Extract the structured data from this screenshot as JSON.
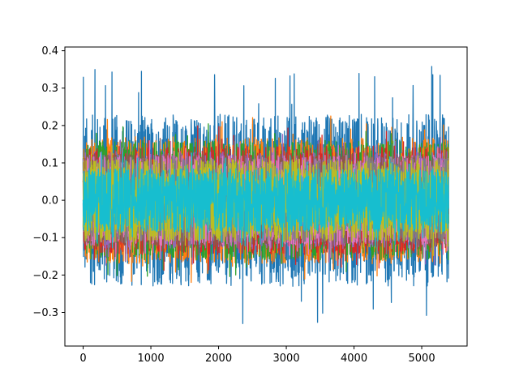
{
  "chart_data": {
    "type": "line",
    "title": "",
    "xlabel": "",
    "ylabel": "",
    "n_points": 5400,
    "xlim": [
      -270,
      5670
    ],
    "ylim": [
      -0.39,
      0.41
    ],
    "x_ticks": [
      0,
      1000,
      2000,
      3000,
      4000,
      5000
    ],
    "y_ticks": [
      -0.3,
      -0.2,
      -0.1,
      0.0,
      0.1,
      0.2,
      0.3,
      0.4
    ],
    "x_tick_labels": [
      "0",
      "1000",
      "2000",
      "3000",
      "4000",
      "5000"
    ],
    "y_tick_labels": [
      "−0.3",
      "−0.2",
      "−0.1",
      "0.0",
      "0.1",
      "0.2",
      "0.3",
      "0.4"
    ],
    "grid": false,
    "legend": "none",
    "series": [
      {
        "color": "#1f77b4",
        "amplitude": 0.23,
        "peak_max": 0.365,
        "peak_min": -0.355
      },
      {
        "color": "#ff7f0e",
        "amplitude": 0.17,
        "peak_max": 0.23,
        "peak_min": -0.22
      },
      {
        "color": "#2ca02c",
        "amplitude": 0.16,
        "peak_max": 0.21,
        "peak_min": -0.21
      },
      {
        "color": "#d62728",
        "amplitude": 0.145,
        "peak_max": 0.2,
        "peak_min": -0.19
      },
      {
        "color": "#9467bd",
        "amplitude": 0.13,
        "peak_max": 0.18,
        "peak_min": -0.18
      },
      {
        "color": "#8c564b",
        "amplitude": 0.125,
        "peak_max": 0.17,
        "peak_min": -0.17
      },
      {
        "color": "#e377c2",
        "amplitude": 0.12,
        "peak_max": 0.16,
        "peak_min": -0.16
      },
      {
        "color": "#7f7f7f",
        "amplitude": 0.115,
        "peak_max": 0.16,
        "peak_min": -0.15
      },
      {
        "color": "#bcbd22",
        "amplitude": 0.11,
        "peak_max": 0.15,
        "peak_min": -0.15
      },
      {
        "color": "#17becf",
        "amplitude": 0.085,
        "peak_max": 0.13,
        "peak_min": -0.13
      }
    ]
  }
}
